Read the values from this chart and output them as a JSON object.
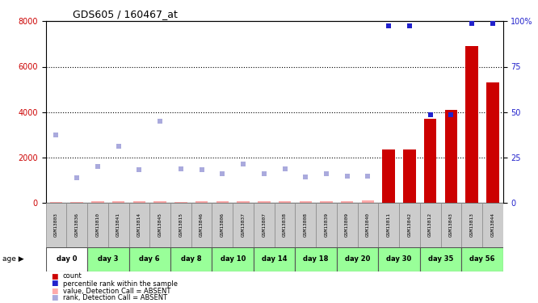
{
  "title": "GDS605 / 160467_at",
  "samples": [
    "GSM13803",
    "GSM13836",
    "GSM13810",
    "GSM13841",
    "GSM13814",
    "GSM13845",
    "GSM13815",
    "GSM13846",
    "GSM13806",
    "GSM13837",
    "GSM13807",
    "GSM13838",
    "GSM13808",
    "GSM13839",
    "GSM13809",
    "GSM13840",
    "GSM13811",
    "GSM13842",
    "GSM13812",
    "GSM13843",
    "GSM13813",
    "GSM13844"
  ],
  "day_groups": [
    {
      "label": "day 0",
      "color": "#ffffff",
      "indices": [
        0,
        1
      ]
    },
    {
      "label": "day 3",
      "color": "#99ff99",
      "indices": [
        2,
        3
      ]
    },
    {
      "label": "day 6",
      "color": "#99ff99",
      "indices": [
        4,
        5
      ]
    },
    {
      "label": "day 8",
      "color": "#99ff99",
      "indices": [
        6,
        7
      ]
    },
    {
      "label": "day 10",
      "color": "#99ff99",
      "indices": [
        8,
        9
      ]
    },
    {
      "label": "day 14",
      "color": "#99ff99",
      "indices": [
        10,
        11
      ]
    },
    {
      "label": "day 18",
      "color": "#99ff99",
      "indices": [
        12,
        13
      ]
    },
    {
      "label": "day 20",
      "color": "#99ff99",
      "indices": [
        14,
        15
      ]
    },
    {
      "label": "day 30",
      "color": "#99ff99",
      "indices": [
        16,
        17
      ]
    },
    {
      "label": "day 35",
      "color": "#99ff99",
      "indices": [
        18,
        19
      ]
    },
    {
      "label": "day 56",
      "color": "#99ff99",
      "indices": [
        20,
        21
      ]
    }
  ],
  "count_values": [
    50,
    60,
    80,
    90,
    80,
    85,
    60,
    70,
    70,
    70,
    70,
    65,
    70,
    70,
    75,
    100,
    2350,
    2350,
    3700,
    4100,
    6900,
    5300
  ],
  "count_absent": [
    true,
    true,
    true,
    true,
    true,
    true,
    true,
    true,
    true,
    true,
    true,
    true,
    true,
    true,
    true,
    true,
    false,
    false,
    false,
    false,
    false,
    false
  ],
  "rank_values": [
    3000,
    1100,
    1600,
    2500,
    1450,
    3600,
    1500,
    1450,
    1300,
    1700,
    1300,
    1500,
    1150,
    1300,
    1200,
    1200,
    null,
    null,
    null,
    null,
    null,
    null
  ],
  "percentile_rank": [
    null,
    null,
    null,
    null,
    null,
    null,
    null,
    null,
    null,
    null,
    null,
    null,
    null,
    null,
    null,
    null,
    97.5,
    97.5,
    48.75,
    48.75,
    98.75,
    98.75
  ],
  "percentile_present": [
    false,
    false,
    false,
    false,
    false,
    false,
    false,
    false,
    false,
    false,
    false,
    false,
    false,
    false,
    false,
    false,
    true,
    true,
    true,
    true,
    true,
    true
  ],
  "ylim_left": [
    0,
    8000
  ],
  "ylim_right": [
    0,
    100
  ],
  "yticks_left": [
    0,
    2000,
    4000,
    6000,
    8000
  ],
  "yticks_right": [
    0,
    25,
    50,
    75,
    100
  ],
  "left_color": "#cc0000",
  "right_color": "#2222cc",
  "bar_color": "#cc0000",
  "rank_dot_color": "#2222cc",
  "rank_absent_color": "#aaaadd",
  "count_absent_color": "#ffaaaa",
  "bg_color": "#ffffff",
  "sample_bg": "#cccccc",
  "legend_items": [
    {
      "color": "#cc0000",
      "label": "count"
    },
    {
      "color": "#2222cc",
      "label": "percentile rank within the sample"
    },
    {
      "color": "#ffaaaa",
      "label": "value, Detection Call = ABSENT"
    },
    {
      "color": "#aaaadd",
      "label": "rank, Detection Call = ABSENT"
    }
  ]
}
